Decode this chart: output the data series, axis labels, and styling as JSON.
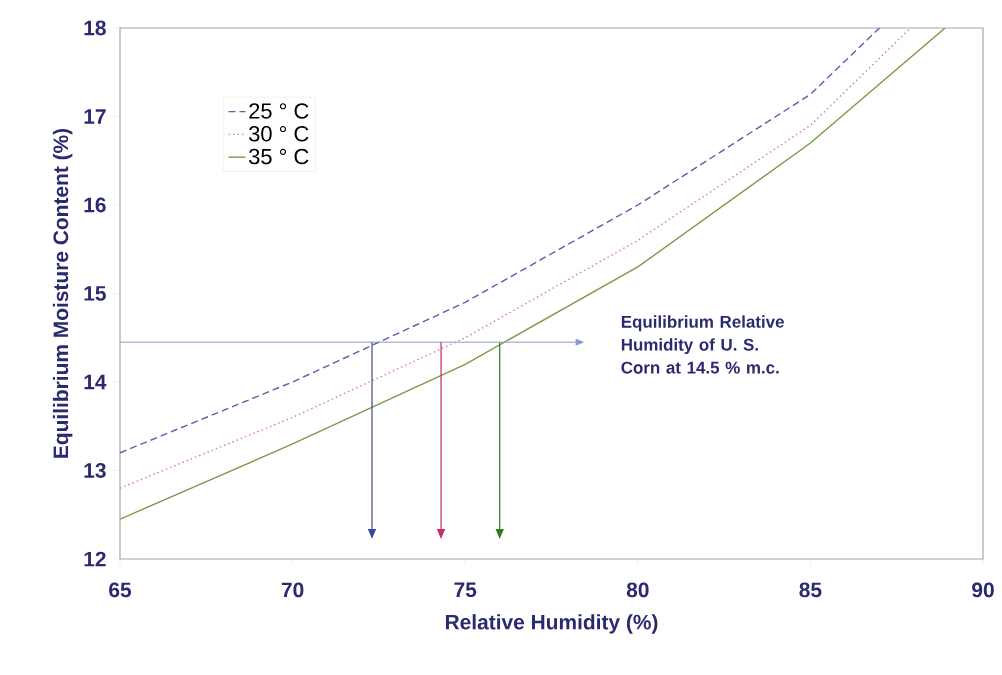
{
  "chart_data": {
    "type": "line",
    "xlabel": "Relative Humidity (%)",
    "ylabel": "Equilibrium Moisture Content (%)",
    "series": [
      {
        "name": "25 ° C",
        "color": "#5a5fa8",
        "line_style": "dashed",
        "x": [
          65,
          70,
          75,
          80,
          85,
          87
        ],
        "values": [
          13.2,
          14.0,
          14.9,
          16.0,
          17.25,
          18.0
        ]
      },
      {
        "name": "30 ° C",
        "color": "#d87aa0",
        "line_style": "dotted",
        "x": [
          65,
          70,
          75,
          80,
          85,
          87.9
        ],
        "values": [
          12.8,
          13.6,
          14.5,
          15.6,
          16.9,
          18.0
        ]
      },
      {
        "name": "35 ° C",
        "color": "#7a9a4a",
        "line_style": "solid",
        "x": [
          65,
          70,
          75,
          80,
          85,
          88.9
        ],
        "values": [
          12.45,
          13.3,
          14.2,
          15.3,
          16.7,
          18.0
        ]
      }
    ],
    "xlim": [
      65,
      90
    ],
    "ylim": [
      12,
      18
    ],
    "xticks": [
      65,
      70,
      75,
      80,
      85,
      90
    ],
    "yticks": [
      12,
      13,
      14,
      15,
      16,
      17,
      18
    ],
    "ref_lines": [
      {
        "axis": "y",
        "value": 14.45,
        "color": "#8a9ad0"
      },
      {
        "axis": "x",
        "value": 72.3,
        "color": "#3a4a9a"
      },
      {
        "axis": "x",
        "value": 74.3,
        "color": "#c8286e"
      },
      {
        "axis": "x",
        "value": 76.0,
        "color": "#2e7d1e"
      }
    ],
    "annotations": [
      "Equilibrium Relative Humidity of U. S. Corn at 14.5 % m.c."
    ],
    "legend": "top left",
    "grid": false
  }
}
